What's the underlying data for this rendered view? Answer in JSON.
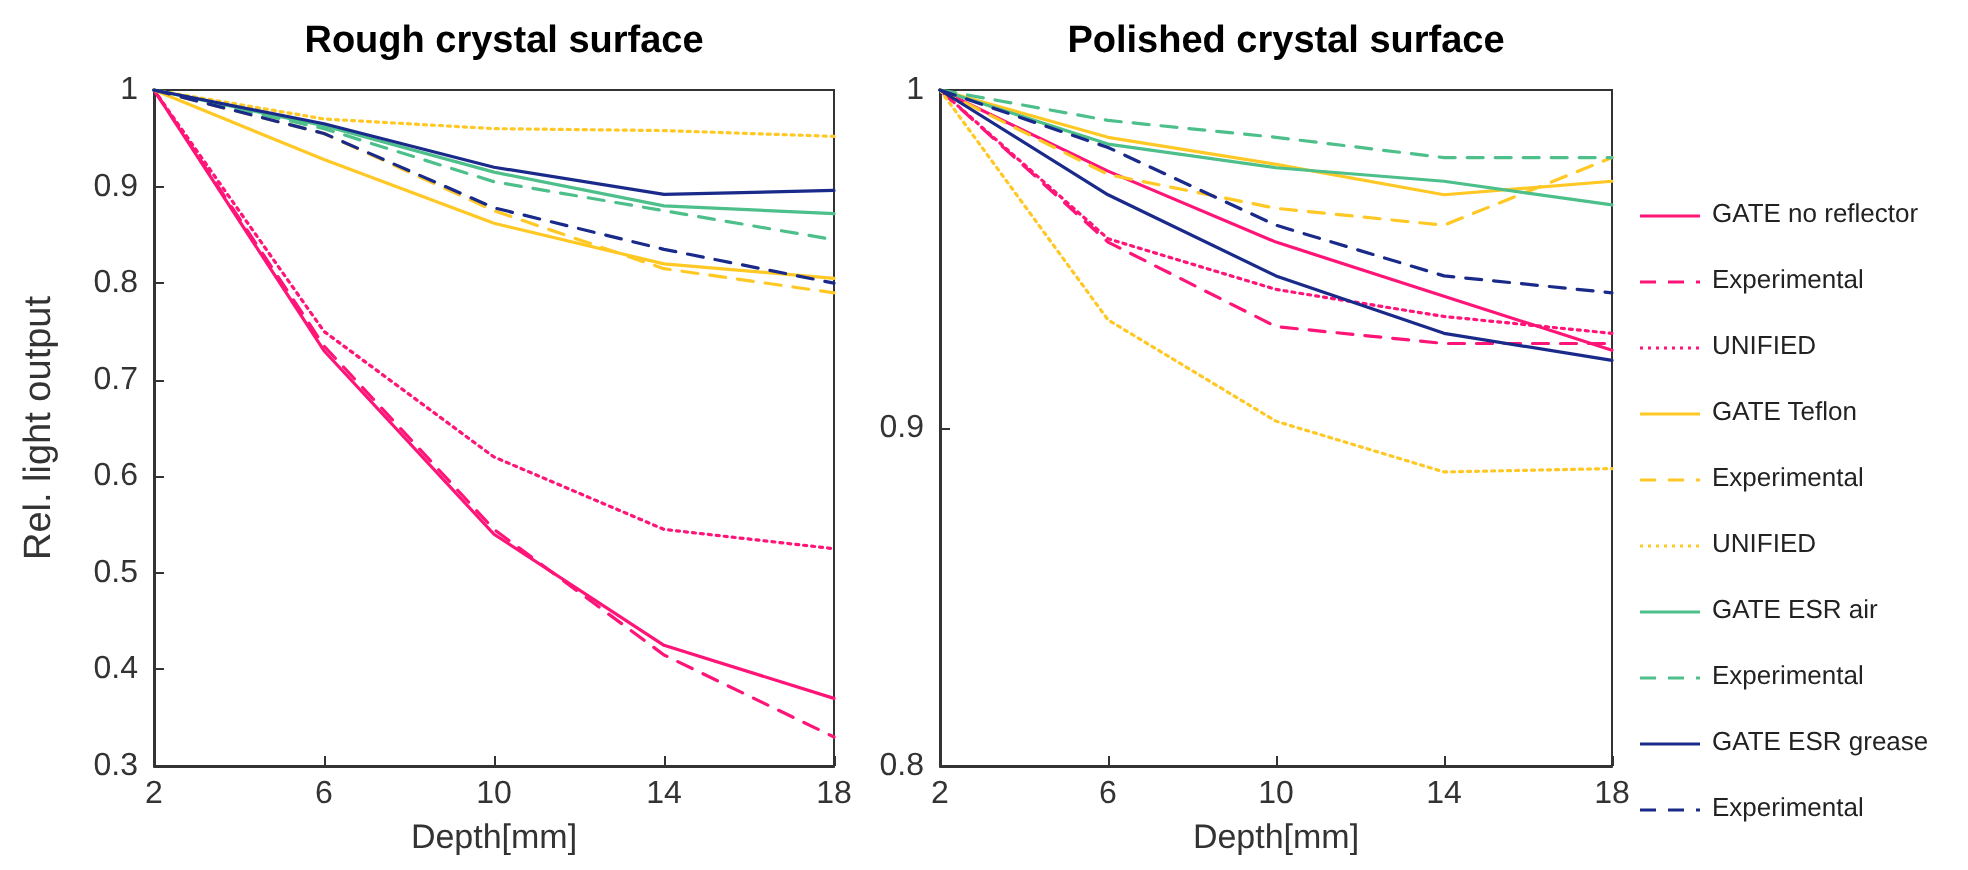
{
  "chart_data": [
    {
      "type": "line",
      "title": "Rough crystal surface",
      "xlabel": "Depth[mm]",
      "ylabel": "Rel. light output",
      "x": [
        2,
        6,
        10,
        14,
        18
      ],
      "xlim": [
        2,
        18
      ],
      "xticks": [
        2,
        6,
        10,
        14,
        18
      ],
      "ylim": [
        0.3,
        1
      ],
      "yticks": [
        0.3,
        0.4,
        0.5,
        0.6,
        0.7,
        0.8,
        0.9,
        1
      ],
      "grid": false,
      "legend": false,
      "marker": "none",
      "series": [
        {
          "color": "#ff1478",
          "line_style": "solid",
          "values": [
            1,
            0.73,
            0.54,
            0.425,
            0.37
          ]
        },
        {
          "color": "#ff1478",
          "line_style": "dashed",
          "values": [
            1,
            0.735,
            0.545,
            0.415,
            0.33
          ]
        },
        {
          "color": "#ff1478",
          "line_style": "dotted",
          "values": [
            1,
            0.75,
            0.62,
            0.545,
            0.525
          ]
        },
        {
          "color": "#ffc825",
          "line_style": "solid",
          "values": [
            1,
            0.928,
            0.862,
            0.82,
            0.805
          ]
        },
        {
          "color": "#ffc825",
          "line_style": "dashed",
          "values": [
            1,
            0.955,
            0.875,
            0.815,
            0.79
          ]
        },
        {
          "color": "#ffc825",
          "line_style": "dotted",
          "values": [
            1,
            0.97,
            0.96,
            0.958,
            0.952
          ]
        },
        {
          "color": "#4dbf8a",
          "line_style": "solid",
          "values": [
            1,
            0.963,
            0.915,
            0.88,
            0.872
          ]
        },
        {
          "color": "#4dbf8a",
          "line_style": "dashed",
          "values": [
            1,
            0.96,
            0.905,
            0.875,
            0.845
          ]
        },
        {
          "color": "#1a2a8a",
          "line_style": "solid",
          "values": [
            1,
            0.965,
            0.92,
            0.892,
            0.896
          ]
        },
        {
          "color": "#1a2a8a",
          "line_style": "dashed",
          "values": [
            1,
            0.955,
            0.878,
            0.835,
            0.8
          ]
        }
      ]
    },
    {
      "type": "line",
      "title": "Polished crystal surface",
      "xlabel": "Depth[mm]",
      "x": [
        2,
        6,
        10,
        14,
        18
      ],
      "xlim": [
        2,
        18
      ],
      "xticks": [
        2,
        6,
        10,
        14,
        18
      ],
      "ylim": [
        0.8,
        1
      ],
      "yticks": [
        0.8,
        0.9,
        1
      ],
      "grid": false,
      "legend": "right",
      "marker": "none",
      "series": [
        {
          "name": "GATE no reflector",
          "color": "#ff1478",
          "line_style": "solid",
          "values": [
            1,
            0.976,
            0.955,
            0.939,
            0.923
          ]
        },
        {
          "name": "Experimental",
          "color": "#ff1478",
          "line_style": "dashed",
          "values": [
            1,
            0.955,
            0.93,
            0.925,
            0.925
          ]
        },
        {
          "name": "UNIFIED",
          "color": "#ff1478",
          "line_style": "dotted",
          "values": [
            1,
            0.956,
            0.941,
            0.933,
            0.928
          ]
        },
        {
          "name": "GATE Teflon",
          "color": "#ffc825",
          "line_style": "solid",
          "values": [
            1,
            0.986,
            0.978,
            0.969,
            0.973
          ]
        },
        {
          "name": "Experimental",
          "color": "#ffc825",
          "line_style": "dashed",
          "values": [
            1,
            0.975,
            0.965,
            0.96,
            0.98
          ]
        },
        {
          "name": "UNIFIED",
          "color": "#ffc825",
          "line_style": "dotted",
          "values": [
            1,
            0.932,
            0.902,
            0.887,
            0.888
          ]
        },
        {
          "name": "GATE ESR air",
          "color": "#4dbf8a",
          "line_style": "solid",
          "values": [
            1,
            0.984,
            0.977,
            0.973,
            0.966
          ]
        },
        {
          "name": "Experimental",
          "color": "#4dbf8a",
          "line_style": "dashed",
          "values": [
            1,
            0.991,
            0.986,
            0.98,
            0.98
          ]
        },
        {
          "name": "GATE ESR grease",
          "color": "#1a2a8a",
          "line_style": "solid",
          "values": [
            1,
            0.969,
            0.945,
            0.928,
            0.92
          ]
        },
        {
          "name": "Experimental",
          "color": "#1a2a8a",
          "line_style": "dashed",
          "values": [
            1,
            0.983,
            0.96,
            0.945,
            0.94
          ]
        }
      ]
    }
  ]
}
